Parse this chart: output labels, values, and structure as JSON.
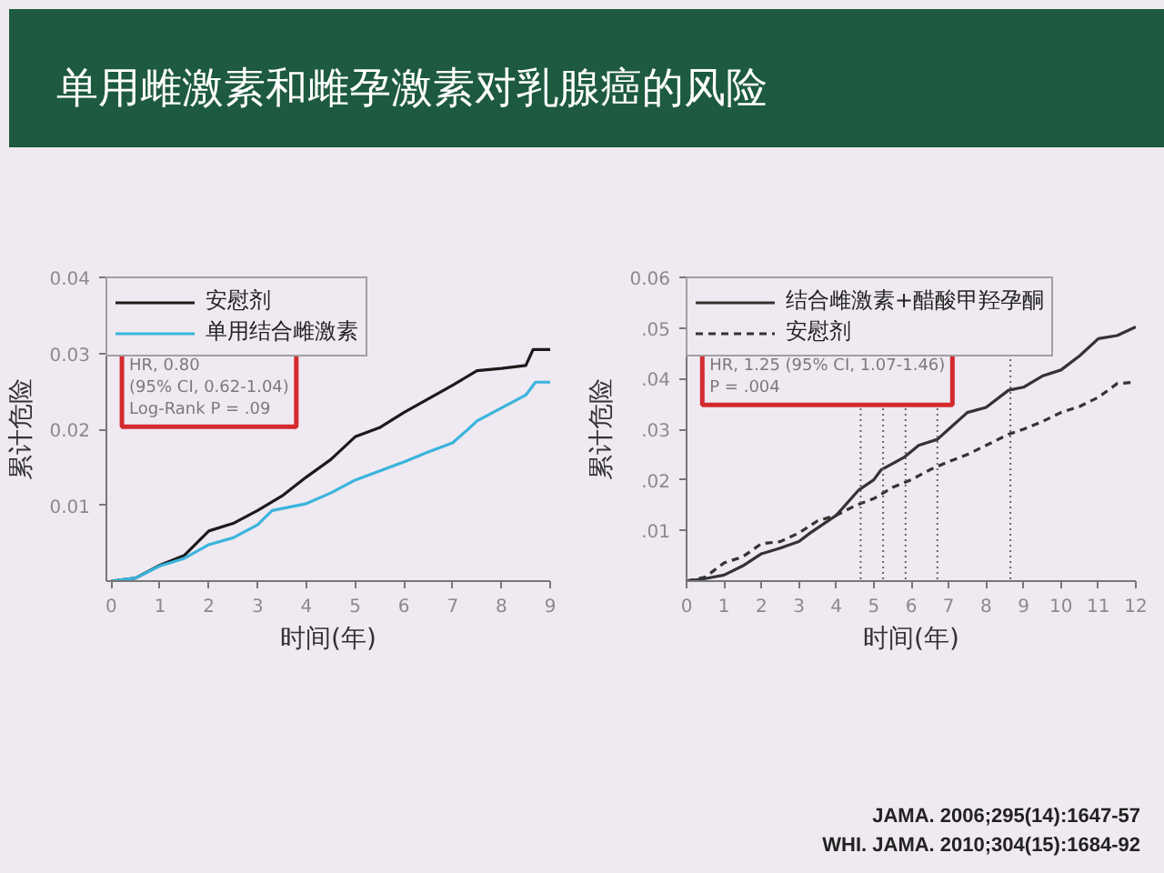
{
  "chart_data": [
    {
      "type": "line",
      "title": "单用雌激素和雌孕激素对乳腺癌的风险",
      "xlabel": "时间(年)",
      "ylabel": "累计危险",
      "xlim": [
        -0.1,
        9
      ],
      "ylim": [
        0,
        0.04
      ],
      "xticks": [
        0,
        1,
        2,
        3,
        4,
        5,
        6,
        7,
        8,
        9
      ],
      "yticks": [
        0.01,
        0.02,
        0.03,
        0.04
      ],
      "legend": "top left",
      "annotations": [
        "HR, 0.80\n(95% CI, 0.62-1.04)\nLog-Rank P = .09"
      ],
      "series": [
        {
          "name": "安慰剂",
          "color": "#1a1a1a",
          "line_style": "solid",
          "x": [
            0,
            0.5,
            1,
            1.5,
            2,
            2.5,
            3,
            3.5,
            4,
            4.5,
            5,
            5.5,
            6,
            6.5,
            7,
            7.5,
            8,
            8.5,
            8.65,
            9
          ],
          "values": [
            0,
            0.0004,
            0.0021,
            0.0034,
            0.0066,
            0.0076,
            0.0093,
            0.0112,
            0.0137,
            0.016,
            0.019,
            0.0202,
            0.0222,
            0.024,
            0.0258,
            0.0277,
            0.028,
            0.0284,
            0.0305,
            0.0305
          ]
        },
        {
          "name": "单用结合雌激素",
          "color": "#3ab4dc",
          "line_style": "solid",
          "x": [
            0,
            0.5,
            1,
            1.5,
            2,
            2.5,
            3,
            3.3,
            4,
            4.5,
            5,
            5.5,
            6,
            6.5,
            7,
            7.3,
            7.5,
            8,
            8.5,
            8.7,
            9
          ],
          "values": [
            0,
            0.0004,
            0.002,
            0.003,
            0.0048,
            0.0057,
            0.0074,
            0.0093,
            0.0102,
            0.0116,
            0.0133,
            0.0145,
            0.0157,
            0.017,
            0.0182,
            0.0199,
            0.0211,
            0.0228,
            0.0245,
            0.0262,
            0.0262
          ]
        }
      ]
    },
    {
      "type": "line",
      "xlabel": "时间(年)",
      "ylabel": "累计危险",
      "xlim": [
        0,
        12
      ],
      "ylim": [
        0,
        0.06
      ],
      "xticks": [
        0,
        1,
        2,
        3,
        4,
        5,
        6,
        7,
        8,
        9,
        10,
        11,
        12
      ],
      "yticks": [
        {
          "value": 0.01,
          "label": ".01"
        },
        {
          "value": 0.02,
          "label": ".02"
        },
        {
          "value": 0.03,
          "label": ".03"
        },
        {
          "value": 0.04,
          "label": ".04"
        },
        {
          "value": 0.05,
          "label": ".05"
        },
        0.06
      ],
      "legend": "top left",
      "ref_lines": [
        {
          "axis": "x",
          "value": 4.65,
          "color": "#666666",
          "line_style": "dotted"
        },
        {
          "axis": "x",
          "value": 5.25,
          "color": "#666666",
          "line_style": "dotted"
        },
        {
          "axis": "x",
          "value": 5.85,
          "color": "#666666",
          "line_style": "dotted"
        },
        {
          "axis": "x",
          "value": 6.7,
          "color": "#666666",
          "line_style": "dotted"
        },
        {
          "axis": "x",
          "value": 8.65,
          "color": "#666666",
          "line_style": "dotted"
        }
      ],
      "annotations": [
        "HR, 1.25 (95% CI, 1.07-1.46)\nP = .004",
        "JAMA. 2006;295(14):1647-57",
        "WHI. JAMA. 2010;304(15):1684-92"
      ],
      "series": [
        {
          "name": "结合雌激素+醋酸甲羟孕酮",
          "color": "#333333",
          "line_style": "solid",
          "x": [
            0,
            0.5,
            1,
            1.5,
            2,
            2.5,
            3,
            3.3,
            4,
            4.6,
            5,
            5.2,
            5.8,
            6.2,
            6.7,
            7,
            7.5,
            8,
            8.6,
            9,
            9.5,
            10,
            10.5,
            11,
            11.5,
            12
          ],
          "values": [
            0,
            0.0005,
            0.0012,
            0.003,
            0.0054,
            0.0065,
            0.0078,
            0.0095,
            0.013,
            0.018,
            0.02,
            0.022,
            0.0244,
            0.0268,
            0.028,
            0.03,
            0.0333,
            0.0343,
            0.0377,
            0.0383,
            0.0405,
            0.0417,
            0.0445,
            0.0479,
            0.0485,
            0.0502
          ]
        },
        {
          "name": "安慰剂",
          "color": "#333333",
          "line_style": "dashed",
          "x": [
            0,
            0.5,
            1,
            1.5,
            2,
            2.5,
            3,
            3.5,
            4,
            4.5,
            5,
            5.5,
            6,
            6.5,
            7,
            7.5,
            8,
            8.6,
            9,
            9.5,
            10,
            10.5,
            11,
            11.5,
            12
          ],
          "values": [
            0,
            0.0008,
            0.0036,
            0.0048,
            0.0074,
            0.0078,
            0.0095,
            0.0119,
            0.013,
            0.0149,
            0.0163,
            0.0185,
            0.02,
            0.022,
            0.0236,
            0.025,
            0.0268,
            0.029,
            0.03,
            0.0315,
            0.0333,
            0.0345,
            0.0363,
            0.039,
            0.0393
          ]
        }
      ]
    }
  ]
}
